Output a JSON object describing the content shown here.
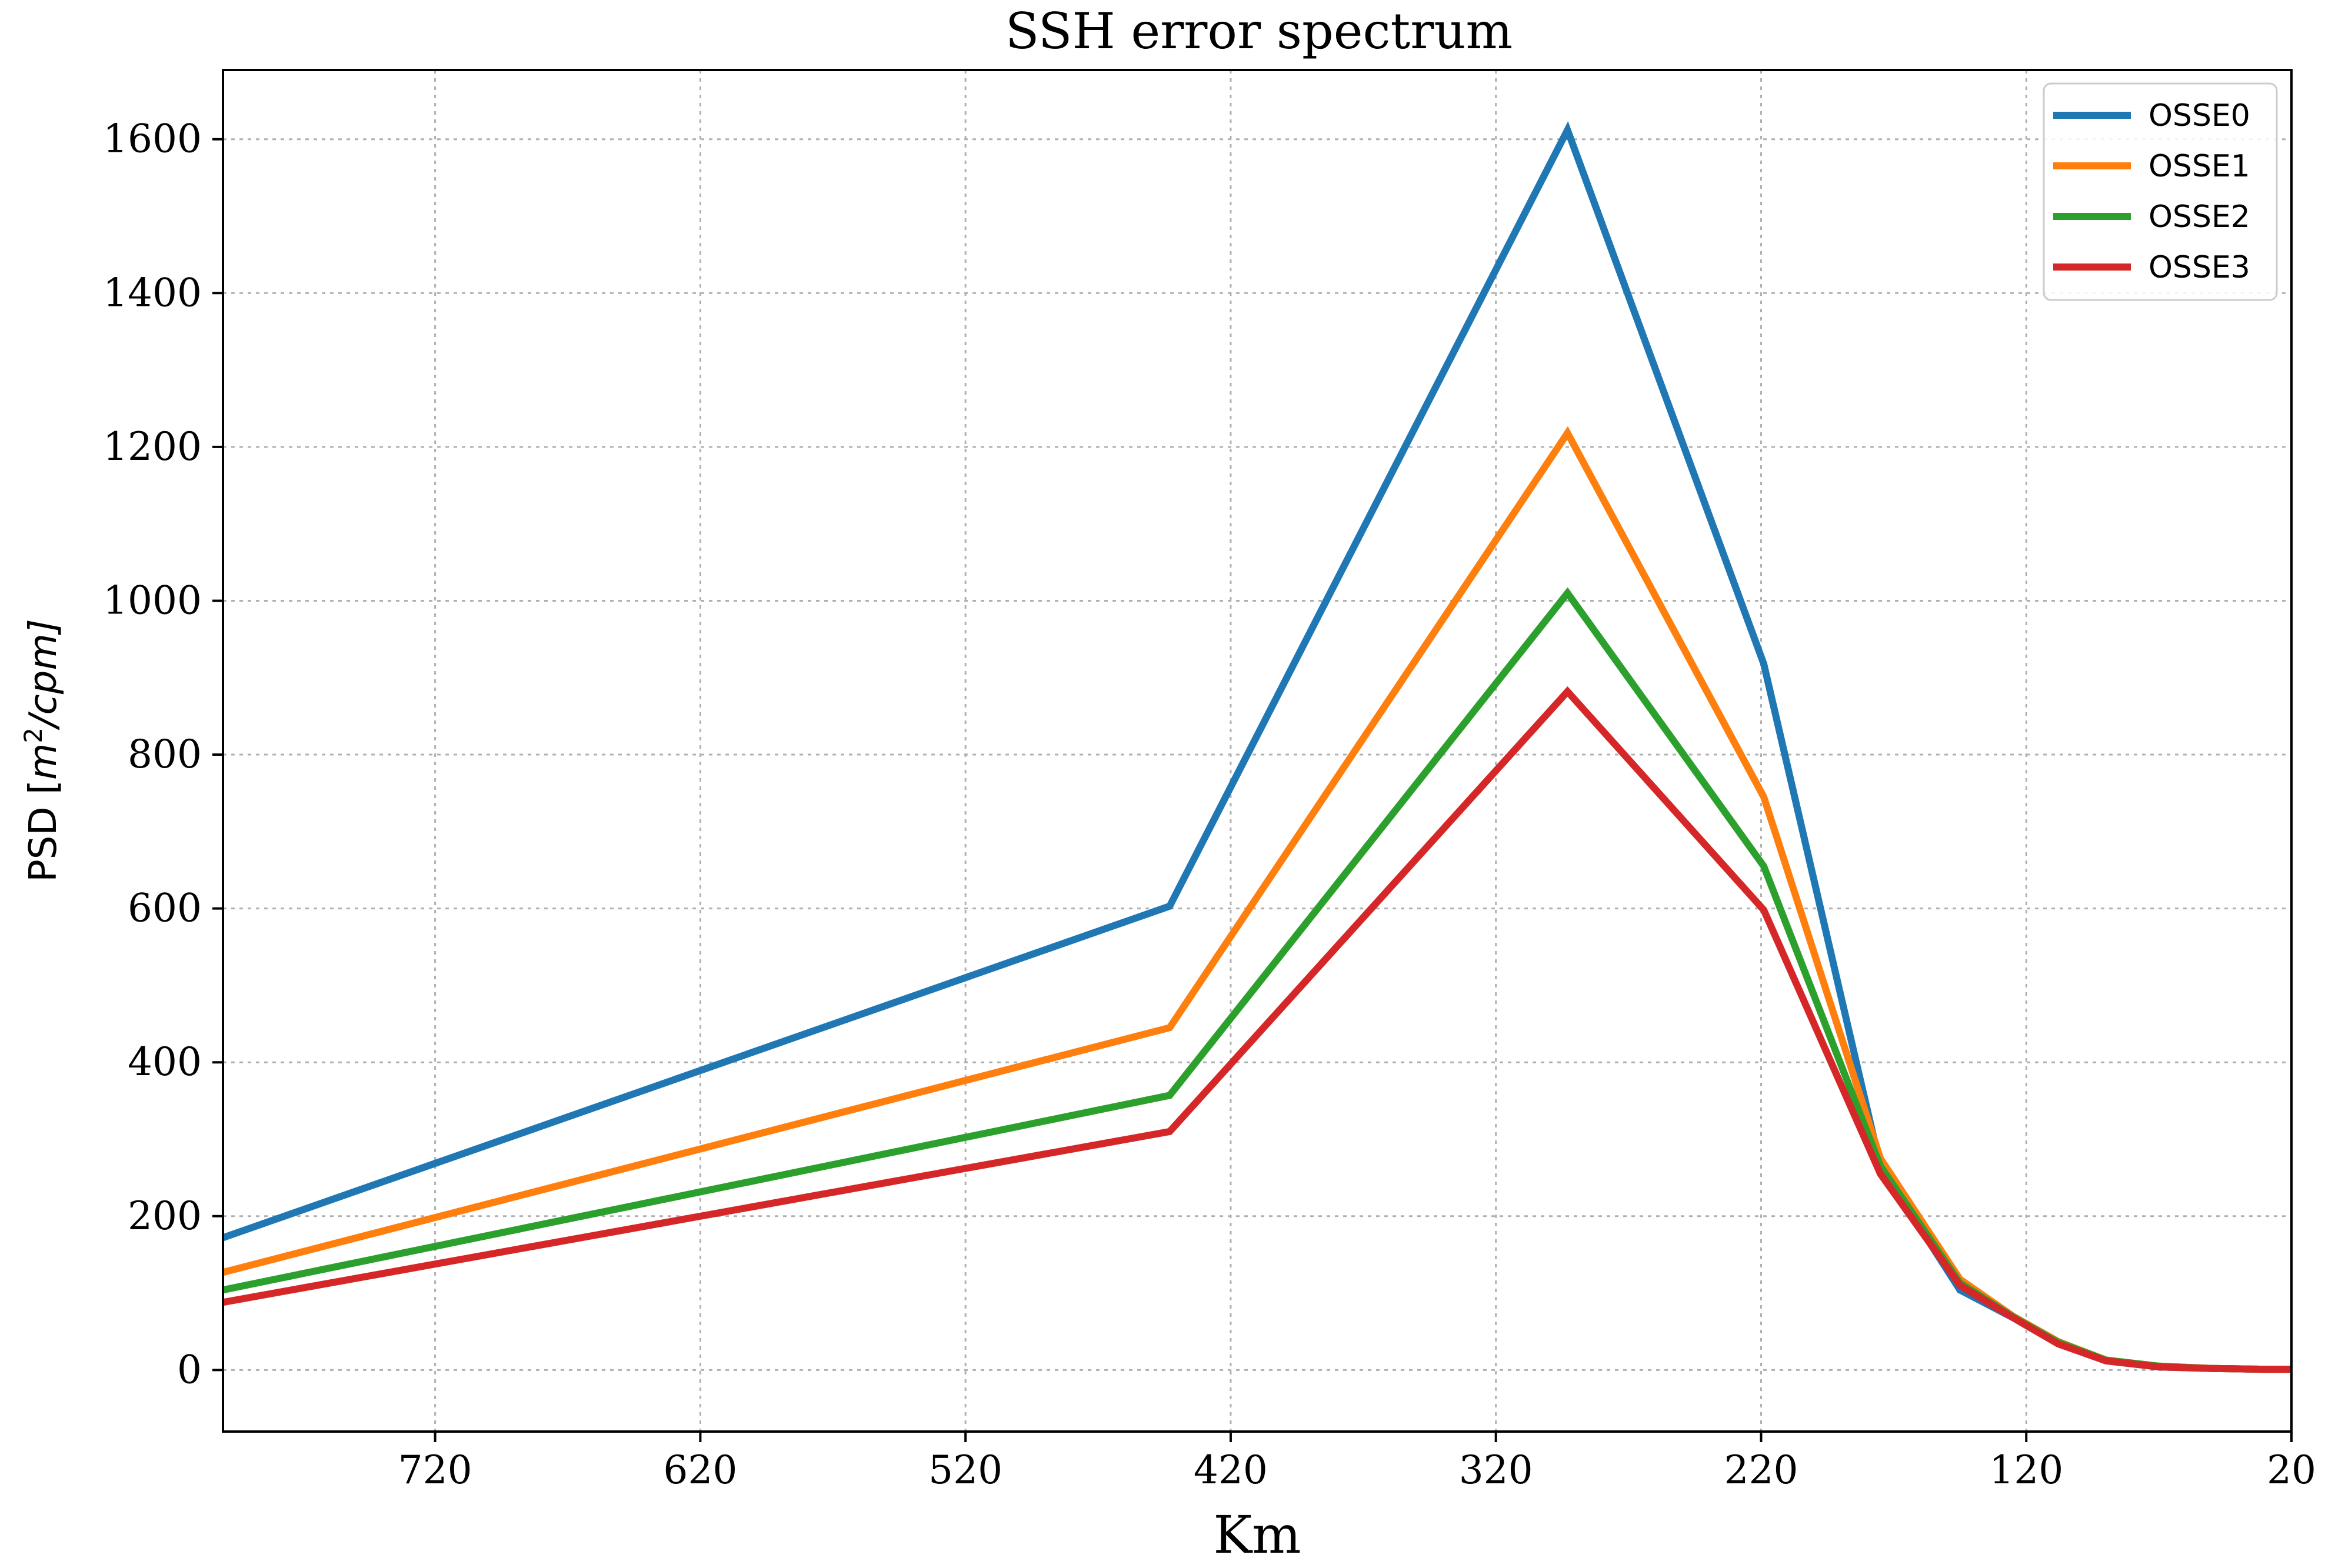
{
  "chart_data": {
    "type": "line",
    "title": "SSH error spectrum",
    "xlabel": "Km",
    "ylabel": "PSD [m²/cpm]",
    "ylabel_main": "PSD [",
    "ylabel_unit": "m",
    "ylabel_exp": "2",
    "ylabel_tail": "/cpm]",
    "xlim": [
      800,
      20
    ],
    "ylim": [
      -80,
      1690
    ],
    "x_ticks": [
      720,
      620,
      520,
      420,
      320,
      220,
      120,
      20
    ],
    "x_tick_labels": [
      "720",
      "620",
      "520",
      "420",
      "320",
      "220",
      "120",
      "20"
    ],
    "y_ticks": [
      0,
      200,
      400,
      600,
      800,
      1000,
      1200,
      1400,
      1600
    ],
    "y_tick_labels": [
      "0",
      "200",
      "400",
      "600",
      "800",
      "1000",
      "1200",
      "1400",
      "1600"
    ],
    "grid": true,
    "legend_position": "top-right",
    "x": [
      800,
      443,
      293,
      219,
      175,
      145,
      125,
      108,
      90,
      70,
      50,
      30,
      20
    ],
    "series": [
      {
        "name": "OSSE0",
        "color": "#1f77b4",
        "values": [
          172,
          603,
          1612,
          918,
          265,
          104,
          68,
          35,
          12,
          4,
          2,
          1,
          1
        ]
      },
      {
        "name": "OSSE1",
        "color": "#ff7f0e",
        "values": [
          127,
          445,
          1218,
          745,
          275,
          118,
          70,
          37,
          13,
          5,
          2,
          1,
          1
        ]
      },
      {
        "name": "OSSE2",
        "color": "#2ca02c",
        "values": [
          104,
          357,
          1010,
          655,
          265,
          113,
          69,
          36,
          13,
          5,
          2,
          1,
          1
        ]
      },
      {
        "name": "OSSE3",
        "color": "#d62728",
        "values": [
          88,
          310,
          882,
          598,
          255,
          110,
          68,
          34,
          12,
          4,
          2,
          1,
          1
        ]
      }
    ]
  }
}
